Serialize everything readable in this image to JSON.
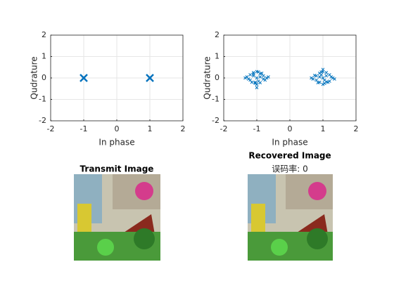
{
  "chart_data": [
    {
      "type": "scatter",
      "xlabel": "In phase",
      "ylabel": "Qudrature",
      "marker": "x",
      "color": "#0072BD",
      "grid": true,
      "xlim": [
        -2,
        2
      ],
      "ylim": [
        -2,
        2
      ],
      "xticks": [
        -2,
        -1,
        0,
        1,
        2
      ],
      "yticks": [
        -2,
        -1,
        0,
        1,
        2
      ],
      "x": [
        -1,
        1
      ],
      "values": [
        0,
        0
      ]
    },
    {
      "type": "scatter",
      "xlabel": "In phase",
      "ylabel": "Qudrature",
      "marker": "x",
      "color": "#0072BD",
      "grid": true,
      "xlim": [
        -2,
        2
      ],
      "ylim": [
        -2,
        2
      ],
      "xticks": [
        -2,
        -1,
        0,
        1,
        2
      ],
      "yticks": [
        -2,
        -1,
        0,
        1,
        2
      ],
      "x": [
        -1.3,
        -1.2,
        -1.1,
        -1.0,
        -0.9,
        -0.8,
        -0.7,
        -0.75,
        -1.25,
        -1.15,
        -1.05,
        -0.95,
        -0.85,
        -1.0,
        -0.9,
        -1.1,
        -1.2,
        -0.8,
        -1.0,
        -0.95,
        -1.05,
        -0.9,
        -1.1,
        -1.0,
        -1.35,
        -0.65,
        1.3,
        1.2,
        1.1,
        1.0,
        0.9,
        0.8,
        0.7,
        0.75,
        1.25,
        1.15,
        1.05,
        0.95,
        0.85,
        1.0,
        0.9,
        1.1,
        1.2,
        0.8,
        1.0,
        0.95,
        1.05,
        0.9,
        1.1,
        1.0,
        1.35,
        0.65
      ],
      "values": [
        0.05,
        0.15,
        0.25,
        0.3,
        0.2,
        0.1,
        0.0,
        -0.1,
        -0.05,
        -0.2,
        -0.25,
        -0.15,
        0.22,
        -0.3,
        0.05,
        0.1,
        -0.1,
        -0.05,
        0.0,
        0.28,
        -0.2,
        -0.22,
        0.18,
        -0.45,
        0.0,
        0.05,
        0.0,
        -0.15,
        0.25,
        0.3,
        -0.2,
        0.1,
        -0.05,
        0.12,
        0.05,
        -0.2,
        -0.25,
        0.15,
        -0.22,
        -0.3,
        0.05,
        0.1,
        0.15,
        -0.1,
        0.0,
        0.28,
        -0.1,
        0.22,
        -0.18,
        0.4,
        -0.05,
        0.0
      ]
    }
  ],
  "images": [
    {
      "title": "Transmit Image"
    },
    {
      "title": "Recovered Image",
      "subtitle": "误码率: 0"
    }
  ]
}
